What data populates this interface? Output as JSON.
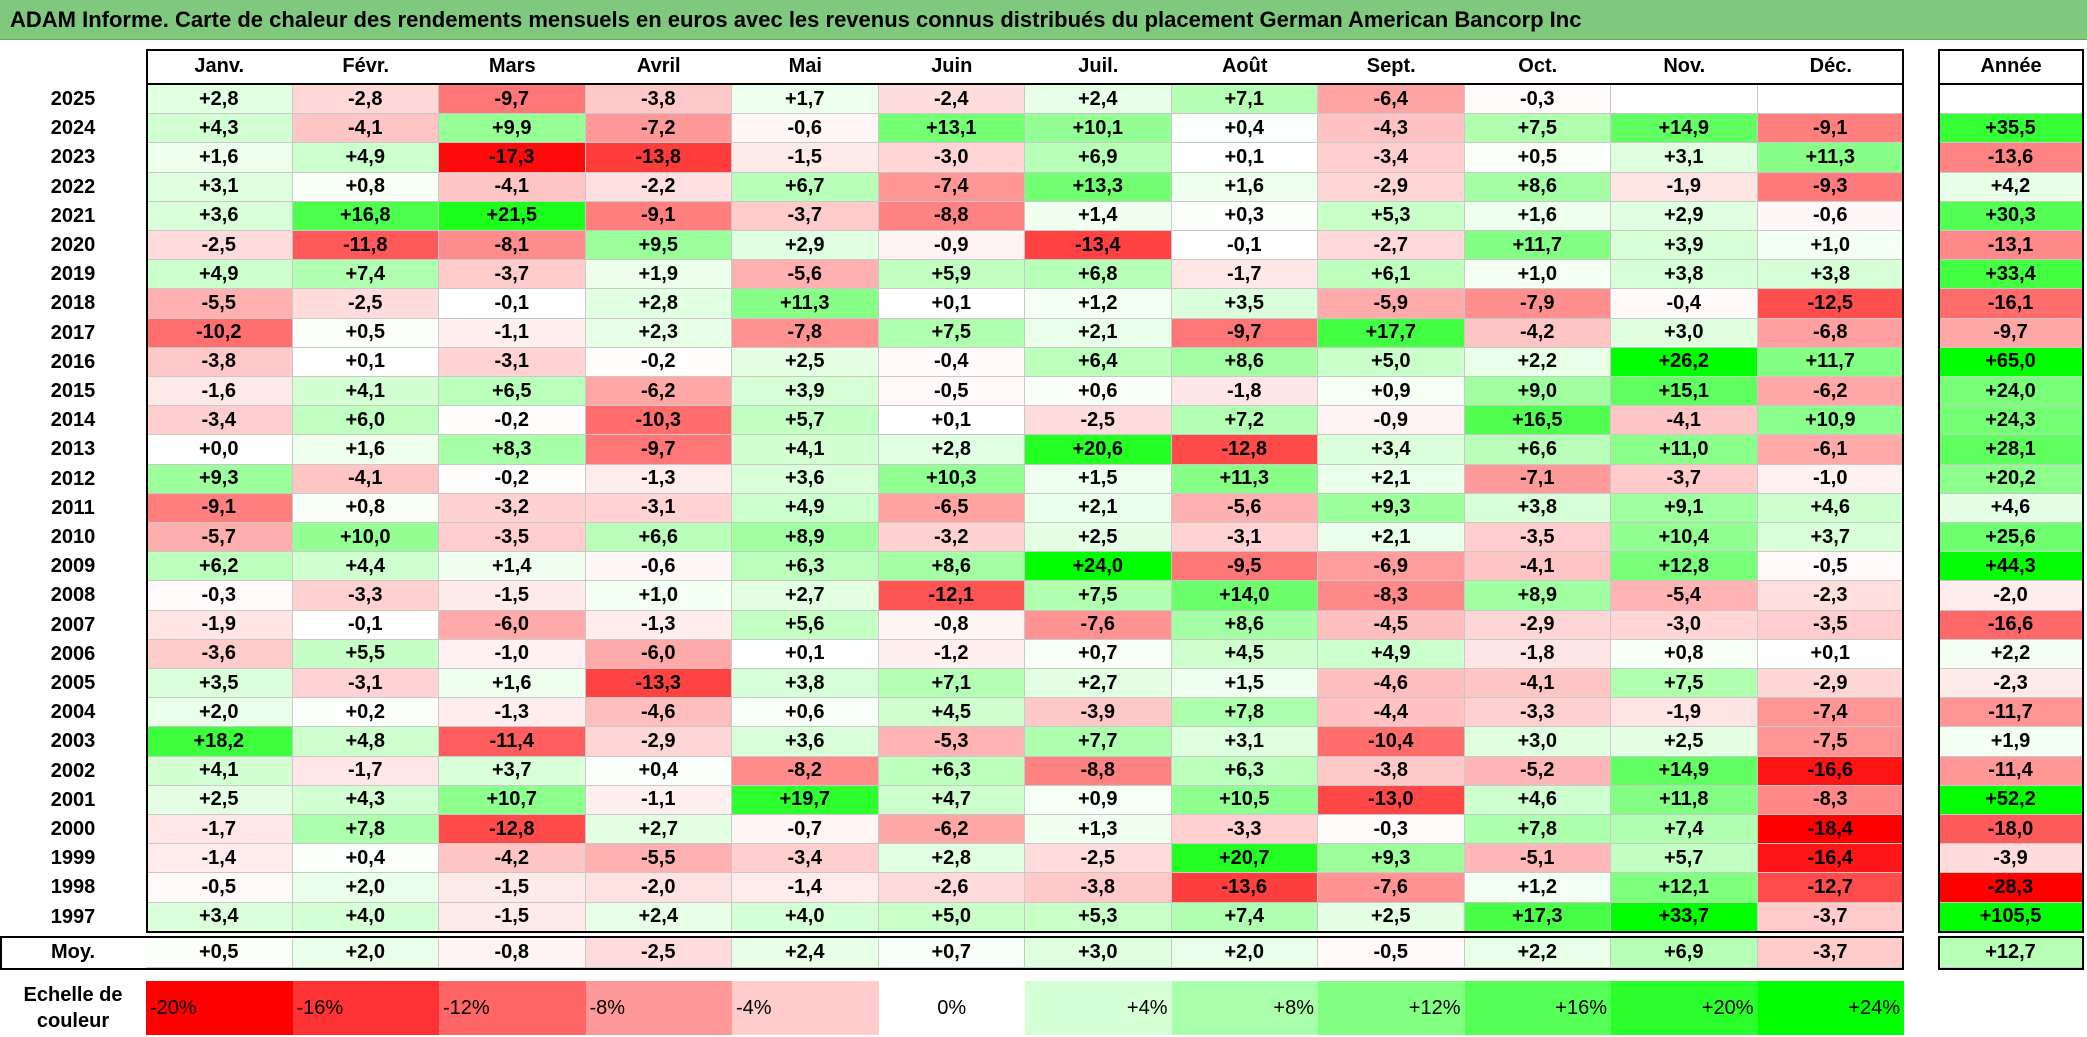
{
  "title": "ADAM Informe. Carte de chaleur des rendements mensuels en euros avec les revenus connus distribués du placement German American Bancorp Inc",
  "months": [
    "Janv.",
    "Févr.",
    "Mars",
    "Avril",
    "Mai",
    "Juin",
    "Juil.",
    "Août",
    "Sept.",
    "Oct.",
    "Nov.",
    "Déc."
  ],
  "year_header": "Année",
  "avg_label": "Moy.",
  "scale_label": "Echelle de couleur",
  "colors": {
    "title_bg": "#7fc97f",
    "positive_max": "#00ff00",
    "negative_max": "#ff0000",
    "zero": "#ffffff"
  },
  "scale": [
    "-20%",
    "-16%",
    "-12%",
    "-8%",
    "-4%",
    "0%",
    "+4%",
    "+8%",
    "+12%",
    "+16%",
    "+20%",
    "+24%"
  ],
  "scale_values": [
    -20,
    -16,
    -12,
    -8,
    -4,
    0,
    4,
    8,
    12,
    16,
    20,
    24
  ],
  "chart_data": {
    "type": "heatmap",
    "title": "ADAM Informe. Carte de chaleur des rendements mensuels en euros avec les revenus connus distribués du placement German American Bancorp Inc",
    "columns": [
      "Janv.",
      "Févr.",
      "Mars",
      "Avril",
      "Mai",
      "Juin",
      "Juil.",
      "Août",
      "Sept.",
      "Oct.",
      "Nov.",
      "Déc."
    ],
    "rows": [
      {
        "year": "2025",
        "months": [
          "+2,8",
          "-2,8",
          "-9,7",
          "-3,8",
          "+1,7",
          "-2,4",
          "+2,4",
          "+7,1",
          "-6,4",
          "-0,3",
          "",
          ""
        ],
        "annual": ""
      },
      {
        "year": "2024",
        "months": [
          "+4,3",
          "-4,1",
          "+9,9",
          "-7,2",
          "-0,6",
          "+13,1",
          "+10,1",
          "+0,4",
          "-4,3",
          "+7,5",
          "+14,9",
          "-9,1"
        ],
        "annual": "+35,5"
      },
      {
        "year": "2023",
        "months": [
          "+1,6",
          "+4,9",
          "-17,3",
          "-13,8",
          "-1,5",
          "-3,0",
          "+6,9",
          "+0,1",
          "-3,4",
          "+0,5",
          "+3,1",
          "+11,3"
        ],
        "annual": "-13,6"
      },
      {
        "year": "2022",
        "months": [
          "+3,1",
          "+0,8",
          "-4,1",
          "-2,2",
          "+6,7",
          "-7,4",
          "+13,3",
          "+1,6",
          "-2,9",
          "+8,6",
          "-1,9",
          "-9,3"
        ],
        "annual": "+4,2"
      },
      {
        "year": "2021",
        "months": [
          "+3,6",
          "+16,8",
          "+21,5",
          "-9,1",
          "-3,7",
          "-8,8",
          "+1,4",
          "+0,3",
          "+5,3",
          "+1,6",
          "+2,9",
          "-0,6"
        ],
        "annual": "+30,3"
      },
      {
        "year": "2020",
        "months": [
          "-2,5",
          "-11,8",
          "-8,1",
          "+9,5",
          "+2,9",
          "-0,9",
          "-13,4",
          "-0,1",
          "-2,7",
          "+11,7",
          "+3,9",
          "+1,0"
        ],
        "annual": "-13,1"
      },
      {
        "year": "2019",
        "months": [
          "+4,9",
          "+7,4",
          "-3,7",
          "+1,9",
          "-5,6",
          "+5,9",
          "+6,8",
          "-1,7",
          "+6,1",
          "+1,0",
          "+3,8",
          "+3,8"
        ],
        "annual": "+33,4"
      },
      {
        "year": "2018",
        "months": [
          "-5,5",
          "-2,5",
          "-0,1",
          "+2,8",
          "+11,3",
          "+0,1",
          "+1,2",
          "+3,5",
          "-5,9",
          "-7,9",
          "-0,4",
          "-12,5"
        ],
        "annual": "-16,1"
      },
      {
        "year": "2017",
        "months": [
          "-10,2",
          "+0,5",
          "-1,1",
          "+2,3",
          "-7,8",
          "+7,5",
          "+2,1",
          "-9,7",
          "+17,7",
          "-4,2",
          "+3,0",
          "-6,8"
        ],
        "annual": "-9,7"
      },
      {
        "year": "2016",
        "months": [
          "-3,8",
          "+0,1",
          "-3,1",
          "-0,2",
          "+2,5",
          "-0,4",
          "+6,4",
          "+8,6",
          "+5,0",
          "+2,2",
          "+26,2",
          "+11,7"
        ],
        "annual": "+65,0"
      },
      {
        "year": "2015",
        "months": [
          "-1,6",
          "+4,1",
          "+6,5",
          "-6,2",
          "+3,9",
          "-0,5",
          "+0,6",
          "-1,8",
          "+0,9",
          "+9,0",
          "+15,1",
          "-6,2"
        ],
        "annual": "+24,0"
      },
      {
        "year": "2014",
        "months": [
          "-3,4",
          "+6,0",
          "-0,2",
          "-10,3",
          "+5,7",
          "+0,1",
          "-2,5",
          "+7,2",
          "-0,9",
          "+16,5",
          "-4,1",
          "+10,9"
        ],
        "annual": "+24,3"
      },
      {
        "year": "2013",
        "months": [
          "+0,0",
          "+1,6",
          "+8,3",
          "-9,7",
          "+4,1",
          "+2,8",
          "+20,6",
          "-12,8",
          "+3,4",
          "+6,6",
          "+11,0",
          "-6,1"
        ],
        "annual": "+28,1"
      },
      {
        "year": "2012",
        "months": [
          "+9,3",
          "-4,1",
          "-0,2",
          "-1,3",
          "+3,6",
          "+10,3",
          "+1,5",
          "+11,3",
          "+2,1",
          "-7,1",
          "-3,7",
          "-1,0"
        ],
        "annual": "+20,2"
      },
      {
        "year": "2011",
        "months": [
          "-9,1",
          "+0,8",
          "-3,2",
          "-3,1",
          "+4,9",
          "-6,5",
          "+2,1",
          "-5,6",
          "+9,3",
          "+3,8",
          "+9,1",
          "+4,6"
        ],
        "annual": "+4,6"
      },
      {
        "year": "2010",
        "months": [
          "-5,7",
          "+10,0",
          "-3,5",
          "+6,6",
          "+8,9",
          "-3,2",
          "+2,5",
          "-3,1",
          "+2,1",
          "-3,5",
          "+10,4",
          "+3,7"
        ],
        "annual": "+25,6"
      },
      {
        "year": "2009",
        "months": [
          "+6,2",
          "+4,4",
          "+1,4",
          "-0,6",
          "+6,3",
          "+8,6",
          "+24,0",
          "-9,5",
          "-6,9",
          "-4,1",
          "+12,8",
          "-0,5"
        ],
        "annual": "+44,3"
      },
      {
        "year": "2008",
        "months": [
          "-0,3",
          "-3,3",
          "-1,5",
          "+1,0",
          "+2,7",
          "-12,1",
          "+7,5",
          "+14,0",
          "-8,3",
          "+8,9",
          "-5,4",
          "-2,3"
        ],
        "annual": "-2,0"
      },
      {
        "year": "2007",
        "months": [
          "-1,9",
          "-0,1",
          "-6,0",
          "-1,3",
          "+5,6",
          "-0,8",
          "-7,6",
          "+8,6",
          "-4,5",
          "-2,9",
          "-3,0",
          "-3,5"
        ],
        "annual": "-16,6"
      },
      {
        "year": "2006",
        "months": [
          "-3,6",
          "+5,5",
          "-1,0",
          "-6,0",
          "+0,1",
          "-1,2",
          "+0,7",
          "+4,5",
          "+4,9",
          "-1,8",
          "+0,8",
          "+0,1"
        ],
        "annual": "+2,2"
      },
      {
        "year": "2005",
        "months": [
          "+3,5",
          "-3,1",
          "+1,6",
          "-13,3",
          "+3,8",
          "+7,1",
          "+2,7",
          "+1,5",
          "-4,6",
          "-4,1",
          "+7,5",
          "-2,9"
        ],
        "annual": "-2,3"
      },
      {
        "year": "2004",
        "months": [
          "+2,0",
          "+0,2",
          "-1,3",
          "-4,6",
          "+0,6",
          "+4,5",
          "-3,9",
          "+7,8",
          "-4,4",
          "-3,3",
          "-1,9",
          "-7,4"
        ],
        "annual": "-11,7"
      },
      {
        "year": "2003",
        "months": [
          "+18,2",
          "+4,8",
          "-11,4",
          "-2,9",
          "+3,6",
          "-5,3",
          "+7,7",
          "+3,1",
          "-10,4",
          "+3,0",
          "+2,5",
          "-7,5"
        ],
        "annual": "+1,9"
      },
      {
        "year": "2002",
        "months": [
          "+4,1",
          "-1,7",
          "+3,7",
          "+0,4",
          "-8,2",
          "+6,3",
          "-8,8",
          "+6,3",
          "-3,8",
          "-5,2",
          "+14,9",
          "-16,6"
        ],
        "annual": "-11,4"
      },
      {
        "year": "2001",
        "months": [
          "+2,5",
          "+4,3",
          "+10,7",
          "-1,1",
          "+19,7",
          "+4,7",
          "+0,9",
          "+10,5",
          "-13,0",
          "+4,6",
          "+11,8",
          "-8,3"
        ],
        "annual": "+52,2"
      },
      {
        "year": "2000",
        "months": [
          "-1,7",
          "+7,8",
          "-12,8",
          "+2,7",
          "-0,7",
          "-6,2",
          "+1,3",
          "-3,3",
          "-0,3",
          "+7,8",
          "+7,4",
          "-18,4"
        ],
        "annual": "-18,0"
      },
      {
        "year": "1999",
        "months": [
          "-1,4",
          "+0,4",
          "-4,2",
          "-5,5",
          "-3,4",
          "+2,8",
          "-2,5",
          "+20,7",
          "+9,3",
          "-5,1",
          "+5,7",
          "-16,4"
        ],
        "annual": "-3,9"
      },
      {
        "year": "1998",
        "months": [
          "-0,5",
          "+2,0",
          "-1,5",
          "-2,0",
          "-1,4",
          "-2,6",
          "-3,8",
          "-13,6",
          "-7,6",
          "+1,2",
          "+12,1",
          "-12,7"
        ],
        "annual": "-28,3"
      },
      {
        "year": "1997",
        "months": [
          "+3,4",
          "+4,0",
          "-1,5",
          "+2,4",
          "+4,0",
          "+5,0",
          "+5,3",
          "+7,4",
          "+2,5",
          "+17,3",
          "+33,7",
          "-3,7"
        ],
        "annual": "+105,5"
      }
    ],
    "average": {
      "months": [
        "+0,5",
        "+2,0",
        "-0,8",
        "-2,5",
        "+2,4",
        "+0,7",
        "+3,0",
        "+2,0",
        "-0,5",
        "+2,2",
        "+6,9",
        "-3,7"
      ],
      "annual": "+12,7"
    },
    "color_scale": {
      "min": -20,
      "max": 24,
      "negative": "#ff0000",
      "zero": "#ffffff",
      "positive": "#00ff00"
    }
  }
}
